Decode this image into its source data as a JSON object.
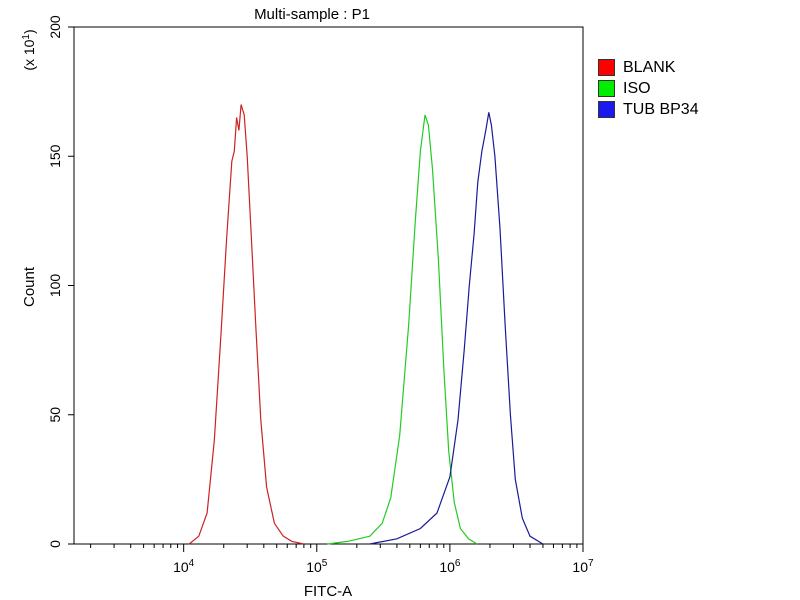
{
  "chart_data": {
    "type": "line",
    "title": "Multi-sample : P1",
    "xlabel": "FITC-A",
    "ylabel": "Count",
    "y_multiplier_label": "(x 10",
    "y_multiplier_exp": "1",
    "y_multiplier_close": ")",
    "xscale": "log",
    "xlim": [
      1500,
      10000000
    ],
    "ylim": [
      0,
      200
    ],
    "yticks": [
      0,
      50,
      100,
      150,
      200
    ],
    "ytick_labels": [
      "0",
      "50",
      "100",
      "150",
      "200"
    ],
    "xticks": [
      {
        "value": 10000,
        "base": "10",
        "exp": "4"
      },
      {
        "value": 100000,
        "base": "10",
        "exp": "5"
      },
      {
        "value": 1000000,
        "base": "10",
        "exp": "6"
      },
      {
        "value": 10000000,
        "base": "10",
        "exp": "7"
      }
    ],
    "legend_position": "right",
    "grid": false,
    "series": [
      {
        "name": "BLANK",
        "color": "#cc2222",
        "swatch": "#ff0000",
        "points": [
          [
            11000,
            0
          ],
          [
            13000,
            3
          ],
          [
            15000,
            12
          ],
          [
            17000,
            40
          ],
          [
            19000,
            80
          ],
          [
            21000,
            118
          ],
          [
            23000,
            148
          ],
          [
            24000,
            152
          ],
          [
            25000,
            165
          ],
          [
            26000,
            160
          ],
          [
            27000,
            170
          ],
          [
            28500,
            166
          ],
          [
            30000,
            150
          ],
          [
            32000,
            122
          ],
          [
            35000,
            82
          ],
          [
            38000,
            48
          ],
          [
            42000,
            22
          ],
          [
            48000,
            8
          ],
          [
            56000,
            3
          ],
          [
            65000,
            1
          ],
          [
            80000,
            0
          ]
        ]
      },
      {
        "name": "ISO",
        "color": "#22cc22",
        "swatch": "#00ee00",
        "points": [
          [
            120000,
            0
          ],
          [
            170000,
            1
          ],
          [
            250000,
            3
          ],
          [
            310000,
            8
          ],
          [
            360000,
            18
          ],
          [
            420000,
            42
          ],
          [
            490000,
            85
          ],
          [
            550000,
            125
          ],
          [
            600000,
            152
          ],
          [
            650000,
            166
          ],
          [
            690000,
            162
          ],
          [
            740000,
            145
          ],
          [
            820000,
            110
          ],
          [
            900000,
            68
          ],
          [
            980000,
            36
          ],
          [
            1080000,
            16
          ],
          [
            1200000,
            6
          ],
          [
            1380000,
            2
          ],
          [
            1600000,
            0
          ]
        ]
      },
      {
        "name": "TUB BP34",
        "color": "#1a1a99",
        "swatch": "#1a1aee",
        "points": [
          [
            250000,
            0
          ],
          [
            400000,
            2
          ],
          [
            600000,
            6
          ],
          [
            800000,
            12
          ],
          [
            1000000,
            26
          ],
          [
            1150000,
            48
          ],
          [
            1280000,
            75
          ],
          [
            1400000,
            100
          ],
          [
            1520000,
            120
          ],
          [
            1620000,
            140
          ],
          [
            1740000,
            152
          ],
          [
            1860000,
            160
          ],
          [
            1960000,
            167
          ],
          [
            2050000,
            162
          ],
          [
            2180000,
            150
          ],
          [
            2380000,
            122
          ],
          [
            2600000,
            85
          ],
          [
            2850000,
            50
          ],
          [
            3100000,
            25
          ],
          [
            3500000,
            10
          ],
          [
            4000000,
            3
          ],
          [
            5000000,
            0
          ]
        ]
      }
    ]
  }
}
